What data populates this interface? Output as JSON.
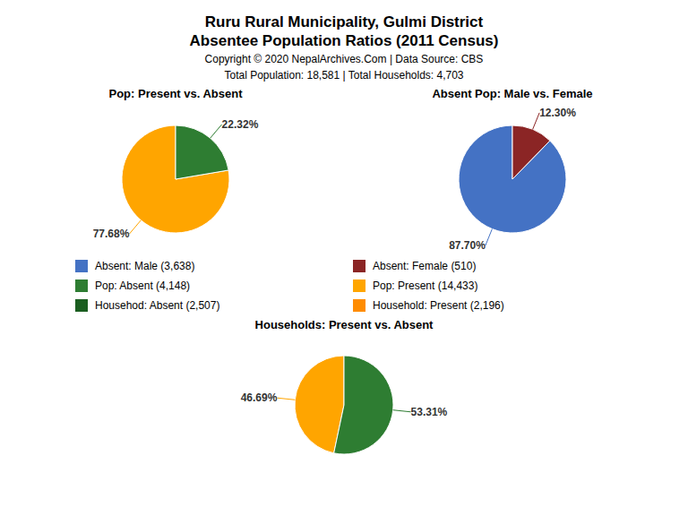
{
  "title": "Ruru Rural Municipality, Gulmi District",
  "subtitle": "Absentee Population Ratios (2011 Census)",
  "annotations": [
    "Copyright © 2020 NepalArchives.Com | Data Source: CBS",
    "Total Population: 18,581 | Total Households: 4,703"
  ],
  "legend_entries": [
    {
      "name": "Absent: Male (3,638)",
      "color": "#4472C4"
    },
    {
      "name": "Absent: Female (510)",
      "color": "#8B2525"
    },
    {
      "name": "Pop: Absent (4,148)",
      "color": "#2E7D32"
    },
    {
      "name": "Pop: Present (14,433)",
      "color": "#FFA500"
    },
    {
      "name": "Househod: Absent (2,507)",
      "color": "#1B5E20"
    },
    {
      "name": "Household: Present (2,196)",
      "color": "#FF8C00"
    }
  ],
  "chart_data": [
    {
      "type": "pie",
      "title": "Pop: Present vs. Absent",
      "values": [
        77.68,
        22.32
      ],
      "value_labels": [
        "77.68%",
        "22.32%"
      ],
      "colors": [
        "#FFA500",
        "#2E7D32"
      ],
      "data_labels": true
    },
    {
      "type": "pie",
      "title": "Absent Pop: Male vs. Female",
      "values": [
        87.7,
        12.3
      ],
      "value_labels": [
        "87.70%",
        "12.30%"
      ],
      "colors": [
        "#4472C4",
        "#8B2525"
      ],
      "data_labels": true
    },
    {
      "type": "pie",
      "title": "Households: Present vs. Absent",
      "values": [
        46.69,
        53.31
      ],
      "value_labels": [
        "46.69%",
        "53.31%"
      ],
      "colors": [
        "#FFA500",
        "#2E7D32"
      ],
      "data_labels": true
    }
  ]
}
